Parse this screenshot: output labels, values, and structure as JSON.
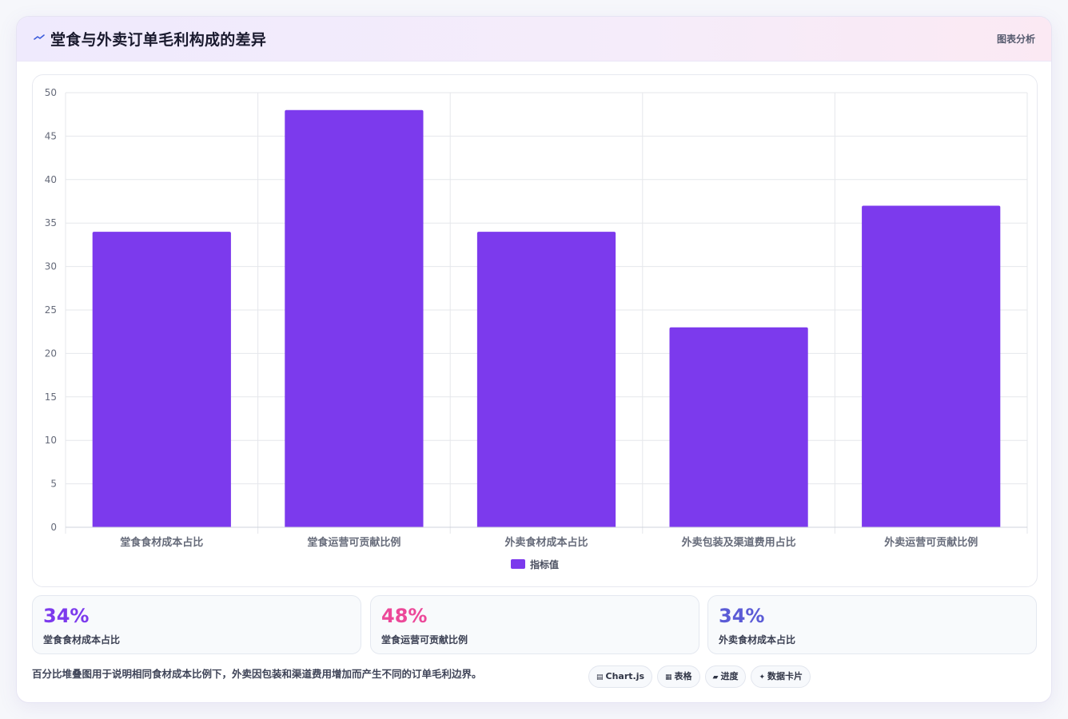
{
  "header": {
    "title": "堂食与外卖订单毛利构成的差异",
    "action_label": "图表分析"
  },
  "chart_data": {
    "type": "bar",
    "categories": [
      "堂食食材成本占比",
      "堂食运营可贡献比例",
      "外卖食材成本占比",
      "外卖包装及渠道费用占比",
      "外卖运营可贡献比例"
    ],
    "series": [
      {
        "name": "指标值",
        "values": [
          34,
          48,
          34,
          23,
          37
        ]
      }
    ],
    "ylim": [
      0,
      50
    ],
    "yticks": [
      0,
      5,
      10,
      15,
      20,
      25,
      30,
      35,
      40,
      45,
      50
    ],
    "grid": true,
    "legend": "bottom-center",
    "colors": {
      "bar": "#7c3aed",
      "grid": "#e5e7eb",
      "axis_text": "#666b7a"
    }
  },
  "kpis": [
    {
      "value": "34%",
      "label": "堂食食材成本占比",
      "color": "#7c3aed"
    },
    {
      "value": "48%",
      "label": "堂食运营可贡献比例",
      "color": "#ec4899"
    },
    {
      "value": "34%",
      "label": "外卖食材成本占比",
      "color": "#5b5bd6"
    }
  ],
  "footer": {
    "note": "百分比堆叠图用于说明相同食材成本比例下，外卖因包装和渠道费用增加而产生不同的订单毛利边界。",
    "chips": [
      {
        "icon": "▤",
        "icon_name": "chart-icon",
        "label": "Chart.js"
      },
      {
        "icon": "▦",
        "icon_name": "table-icon",
        "label": "表格"
      },
      {
        "icon": "▰",
        "icon_name": "progress-icon",
        "label": "进度"
      },
      {
        "icon": "✦",
        "icon_name": "sparkle-icon",
        "label": "数据卡片"
      }
    ]
  }
}
